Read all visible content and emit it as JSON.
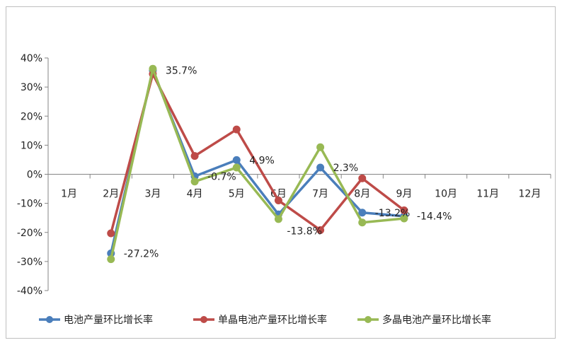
{
  "chart_data": {
    "type": "line",
    "title": "",
    "xlabel": "",
    "ylabel": "",
    "categories": [
      "1月",
      "2月",
      "3月",
      "4月",
      "5月",
      "6月",
      "7月",
      "8月",
      "9月",
      "10月",
      "11月",
      "12月"
    ],
    "y_ticks": [
      "40%",
      "30%",
      "20%",
      "10%",
      "0%",
      "-10%",
      "-20%",
      "-30%",
      "-40%"
    ],
    "y_tick_values": [
      40,
      30,
      20,
      10,
      0,
      -10,
      -20,
      -30,
      -40
    ],
    "ylim": [
      -40,
      40
    ],
    "grid": false,
    "legend_position": "bottom",
    "series": [
      {
        "name": "电池产量环比增长率",
        "color": "#4a7ebb",
        "values": [
          null,
          -27.2,
          35.7,
          -0.7,
          4.9,
          -13.8,
          2.3,
          -13.2,
          -14.4,
          null,
          null,
          null
        ],
        "labels": [
          null,
          "-27.2%",
          "35.7%",
          "-0.7%",
          "4.9%",
          "-13.8%",
          "2.3%",
          "-13.2%",
          "-14.4%",
          null,
          null,
          null
        ]
      },
      {
        "name": "单晶电池产量环比增长率",
        "color": "#be4b48",
        "values": [
          null,
          -20.3,
          34.5,
          6.3,
          15.4,
          -9.0,
          -19.2,
          -1.4,
          -12.4,
          null,
          null,
          null
        ]
      },
      {
        "name": "多晶电池产量环比增长率",
        "color": "#98b954",
        "values": [
          null,
          -29.2,
          36.3,
          -2.5,
          2.3,
          -15.4,
          9.3,
          -16.6,
          -15.2,
          null,
          null,
          null
        ]
      }
    ]
  }
}
